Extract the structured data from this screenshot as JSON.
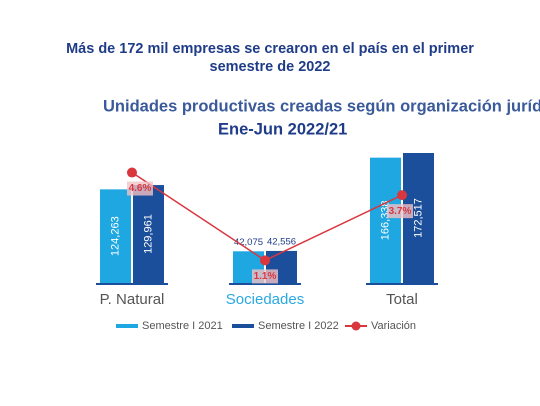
{
  "header": {
    "title": "Más de 172 mil empresas se crearon en el país en el primer semestre de 2022"
  },
  "chart_data": {
    "type": "bar",
    "title": "Unidades productivas creadas según organización jurídica",
    "subtitle": "Ene-Jun 2022/21",
    "categories": [
      "P. Natural",
      "Sociedades",
      "Total"
    ],
    "series": [
      {
        "name": "Semestre I 2021",
        "color": "#1ea7e1",
        "values": [
          124263,
          42075,
          166338
        ],
        "value_labels": [
          "124,263",
          "42,075",
          "166,338"
        ]
      },
      {
        "name": "Semestre I 2022",
        "color": "#1b4f9c",
        "values": [
          129961,
          42556,
          172517
        ],
        "value_labels": [
          "129,961",
          "42,556",
          "172,517"
        ]
      },
      {
        "name": "Variación",
        "type": "line",
        "color": "#d9363e",
        "values": [
          4.6,
          1.1,
          3.7
        ],
        "value_labels": [
          "4.6%",
          "1.1%",
          "3.7%"
        ]
      }
    ]
  }
}
